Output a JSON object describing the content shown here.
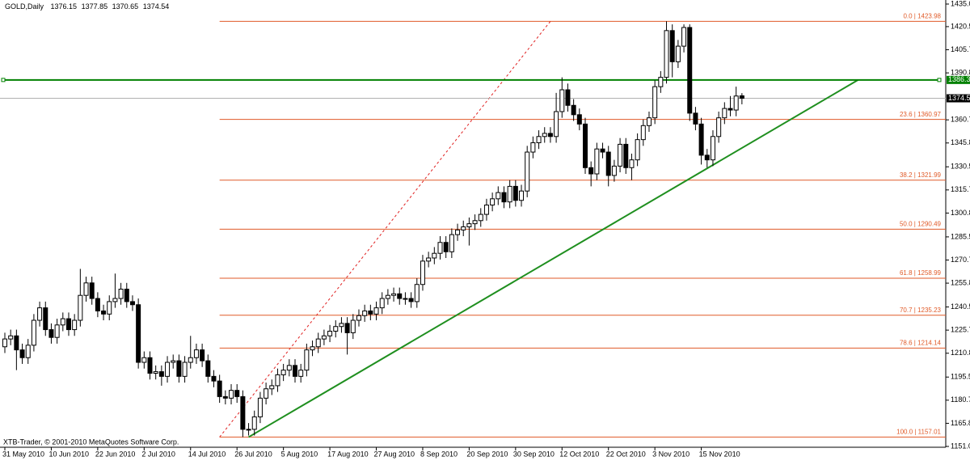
{
  "chart_data": {
    "type": "candlestick",
    "title": "GOLD,Daily",
    "footer": "XTB-Trader, © 2001-2010 MetaQuotes Software Corp.",
    "categories": [
      "31 May 2010",
      null,
      null,
      null,
      null,
      null,
      null,
      null,
      "10 Jun 2010",
      null,
      null,
      null,
      null,
      null,
      null,
      null,
      "22 Jun 2010",
      null,
      null,
      null,
      null,
      null,
      null,
      null,
      "2 Jul 2010",
      null,
      null,
      null,
      null,
      null,
      null,
      null,
      "14 Jul 2010",
      null,
      null,
      null,
      null,
      null,
      null,
      null,
      "26 Jul 2010",
      null,
      null,
      null,
      null,
      null,
      null,
      null,
      "5 Aug 2010",
      null,
      null,
      null,
      null,
      null,
      null,
      null,
      "17 Aug 2010",
      null,
      null,
      null,
      null,
      null,
      null,
      null,
      "27 Aug 2010",
      null,
      null,
      null,
      null,
      null,
      null,
      null,
      "8 Sep 2010",
      null,
      null,
      null,
      null,
      null,
      null,
      null,
      "20 Sep 2010",
      null,
      null,
      null,
      null,
      null,
      null,
      null,
      "30 Sep 2010",
      null,
      null,
      null,
      null,
      null,
      null,
      null,
      "12 Oct 2010",
      null,
      null,
      null,
      null,
      null,
      null,
      null,
      "22 Oct 2010",
      null,
      null,
      null,
      null,
      null,
      null,
      null,
      "3 Nov 2010",
      null,
      null,
      null,
      null,
      null,
      null,
      null,
      "15 Nov 2010",
      null,
      null,
      null,
      null,
      null,
      null,
      null
    ],
    "open": [
      1215,
      1220,
      1222,
      1213,
      1208,
      1216,
      1232,
      1240,
      1226,
      1221,
      1229,
      1233,
      1226,
      1232,
      1248,
      1256,
      1246,
      1238,
      1236,
      1244,
      1246,
      1252,
      1244,
      1242,
      1205,
      1208,
      1198,
      1199,
      1196,
      1205,
      1206,
      1196,
      1205,
      1208,
      1213,
      1206,
      1196,
      1193,
      1183,
      1182,
      1187,
      1183,
      1162,
      1162,
      1170,
      1182,
      1188,
      1190,
      1197,
      1200,
      1203,
      1196,
      1200,
      1213,
      1215,
      1220,
      1222,
      1225,
      1228,
      1230,
      1224,
      1232,
      1235,
      1238,
      1236,
      1240,
      1246,
      1248,
      1249,
      1246,
      1246,
      1244,
      1255,
      1270,
      1272,
      1275,
      1282,
      1276,
      1287,
      1290,
      1292,
      1294,
      1296,
      1300,
      1306,
      1310,
      1314,
      1308,
      1318,
      1309,
      1315,
      1340,
      1346,
      1350,
      1352,
      1350,
      1366,
      1380,
      1370,
      1364,
      1358,
      1330,
      1326,
      1342,
      1340,
      1325,
      1331,
      1345,
      1330,
      1335,
      1348,
      1357,
      1362,
      1382,
      1388,
      1418,
      1398,
      1408,
      1420,
      1365,
      1358,
      1338,
      1335,
      1350,
      1362,
      1368,
      1367,
      1376.15
    ],
    "high": [
      1224,
      1226,
      1226,
      1217,
      1220,
      1236,
      1244,
      1244,
      1230,
      1233,
      1237,
      1237,
      1236,
      1265,
      1260,
      1260,
      1250,
      1242,
      1248,
      1262,
      1256,
      1256,
      1248,
      1246,
      1212,
      1212,
      1203,
      1203,
      1209,
      1210,
      1210,
      1209,
      1222,
      1217,
      1217,
      1210,
      1200,
      1197,
      1187,
      1191,
      1191,
      1187,
      1166,
      1174,
      1186,
      1192,
      1194,
      1201,
      1204,
      1207,
      1207,
      1204,
      1217,
      1219,
      1224,
      1226,
      1229,
      1232,
      1234,
      1234,
      1236,
      1239,
      1242,
      1242,
      1244,
      1250,
      1252,
      1253,
      1253,
      1250,
      1250,
      1259,
      1274,
      1276,
      1279,
      1286,
      1286,
      1291,
      1294,
      1296,
      1298,
      1300,
      1304,
      1310,
      1314,
      1318,
      1318,
      1322,
      1322,
      1319,
      1344,
      1350,
      1354,
      1356,
      1356,
      1378,
      1388,
      1384,
      1374,
      1368,
      1362,
      1334,
      1346,
      1346,
      1344,
      1335,
      1349,
      1349,
      1339,
      1352,
      1361,
      1366,
      1386,
      1392,
      1423.98,
      1422,
      1412,
      1422,
      1422,
      1369,
      1362,
      1342,
      1354,
      1366,
      1372,
      1376,
      1382,
      1377.85
    ],
    "low": [
      1211,
      1216,
      1200,
      1204,
      1204,
      1212,
      1228,
      1222,
      1217,
      1217,
      1225,
      1222,
      1222,
      1228,
      1244,
      1242,
      1234,
      1232,
      1232,
      1240,
      1242,
      1240,
      1238,
      1201,
      1201,
      1194,
      1194,
      1190,
      1192,
      1201,
      1192,
      1192,
      1201,
      1204,
      1202,
      1192,
      1189,
      1179,
      1178,
      1178,
      1179,
      1157.01,
      1158,
      1158,
      1166,
      1178,
      1184,
      1186,
      1193,
      1196,
      1192,
      1192,
      1196,
      1209,
      1211,
      1216,
      1218,
      1221,
      1224,
      1210,
      1220,
      1228,
      1231,
      1232,
      1232,
      1236,
      1242,
      1244,
      1242,
      1242,
      1240,
      1240,
      1251,
      1266,
      1268,
      1271,
      1272,
      1272,
      1283,
      1286,
      1280,
      1290,
      1292,
      1296,
      1302,
      1306,
      1304,
      1304,
      1305,
      1305,
      1311,
      1336,
      1342,
      1346,
      1346,
      1346,
      1362,
      1366,
      1360,
      1354,
      1326,
      1318,
      1322,
      1336,
      1318,
      1321,
      1327,
      1326,
      1322,
      1331,
      1344,
      1353,
      1358,
      1378,
      1384,
      1388,
      1394,
      1404,
      1360,
      1354,
      1332,
      1330,
      1331,
      1346,
      1358,
      1363,
      1363,
      1370.65
    ],
    "close": [
      1220,
      1222,
      1213,
      1208,
      1216,
      1232,
      1240,
      1226,
      1221,
      1229,
      1233,
      1226,
      1232,
      1248,
      1256,
      1246,
      1238,
      1236,
      1244,
      1246,
      1252,
      1244,
      1242,
      1205,
      1208,
      1198,
      1199,
      1196,
      1205,
      1206,
      1196,
      1205,
      1208,
      1213,
      1206,
      1196,
      1193,
      1183,
      1182,
      1187,
      1183,
      1162,
      1162,
      1170,
      1182,
      1188,
      1190,
      1197,
      1200,
      1203,
      1196,
      1200,
      1213,
      1215,
      1220,
      1222,
      1225,
      1228,
      1230,
      1224,
      1232,
      1235,
      1238,
      1236,
      1240,
      1246,
      1248,
      1249,
      1246,
      1246,
      1244,
      1255,
      1270,
      1272,
      1275,
      1282,
      1276,
      1287,
      1290,
      1292,
      1294,
      1296,
      1300,
      1306,
      1310,
      1314,
      1308,
      1318,
      1309,
      1315,
      1340,
      1346,
      1350,
      1352,
      1350,
      1366,
      1380,
      1370,
      1364,
      1358,
      1330,
      1326,
      1342,
      1340,
      1325,
      1331,
      1345,
      1330,
      1335,
      1348,
      1357,
      1362,
      1382,
      1388,
      1418,
      1398,
      1408,
      1420,
      1365,
      1358,
      1338,
      1335,
      1350,
      1362,
      1368,
      1367,
      1376,
      1374.54
    ],
    "up_color": "#ffffff",
    "down_color": "#000000",
    "ylim": [
      1151,
      1435.05
    ],
    "yticks": [
      1435.05,
      1420.55,
      {
        "value": 1405.7,
        "label": "1405.70"
      },
      1390.85,
      {
        "value": 1360.7,
        "label": "1360.70"
      },
      1345.85,
      1330.55,
      {
        "value": 1315.7,
        "label": "1315.70"
      },
      1300.85,
      1285.55,
      {
        "value": 1270.7,
        "label": "1270.70"
      },
      1255.85,
      1240.55,
      {
        "value": 1225.7,
        "label": "1225.70"
      },
      1210.85,
      1195.55,
      {
        "value": 1180.7,
        "label": "1180.70"
      },
      1165.85,
      {
        "value": 1151,
        "label": "1151.00"
      }
    ],
    "fibonacci": {
      "color": "#e05a28",
      "x": [
        37,
        94
      ],
      "y": [
        1157.01,
        1423.98
      ],
      "levels": [
        {
          "value": 1423.98,
          "label": "0.0 | 1423.98"
        },
        {
          "value": 1360.97,
          "label": "23.6 | 1360.97"
        },
        {
          "value": 1321.99,
          "label": "38.2 | 1321.99"
        },
        {
          "value": 1290.49,
          "label": "50.0 | 1290.49"
        },
        {
          "value": 1258.99,
          "label": "61.8 | 1258.99"
        },
        {
          "value": 1235.23,
          "label": "70.7 | 1235.23"
        },
        {
          "value": 1214.14,
          "label": "78.6 | 1214.14"
        },
        {
          "value": 1157.01,
          "label": "100.0 | 1157.01"
        }
      ]
    },
    "hline": {
      "value": 1386.31,
      "color": "#008000"
    },
    "trendline": {
      "x": [
        42,
        147
      ],
      "y": [
        1157.01,
        1386.31
      ],
      "color": "#1f8f1f"
    }
  }
}
